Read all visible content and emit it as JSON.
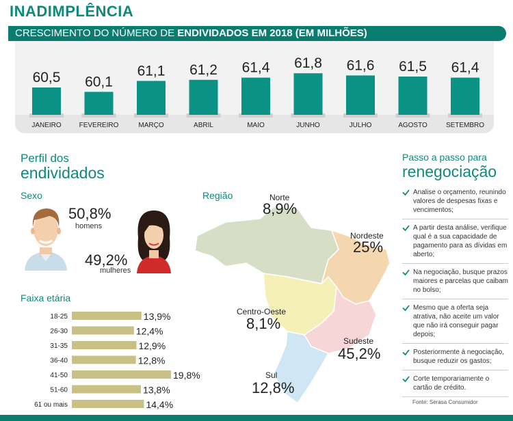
{
  "title": "INADIMPLÊNCIA",
  "subtitle_prefix": "CRESCIMENTO DO NÚMERO DE ",
  "subtitle_bold": "ENDIVIDADOS EM 2018 (EM MILHÕES)",
  "colors": {
    "teal": "#0e8a7a",
    "bar_teal": "#0a9384",
    "age_bar": "#c9c184",
    "norte": "#d6dfc6",
    "nordeste": "#f4d7af",
    "centro_oeste": "#f5f0b8",
    "sudeste": "#f6d6d6",
    "sul": "#cfe6f4"
  },
  "perfil": {
    "line1": "Perfil dos",
    "line2": "endividados"
  },
  "sexo": {
    "label": "Sexo",
    "homens_value": "50,8%",
    "homens_label": "homens",
    "mulheres_value": "49,2%",
    "mulheres_label": "mulheres"
  },
  "faixa_label": "Faixa etária",
  "regiao_label": "Região",
  "regions": [
    {
      "name": "Norte",
      "value": "8,9%"
    },
    {
      "name": "Nordeste",
      "value": "25%"
    },
    {
      "name": "Centro-Oeste",
      "value": "8,1%"
    },
    {
      "name": "Sudeste",
      "value": "45,2%"
    },
    {
      "name": "Sul",
      "value": "12,8%"
    }
  ],
  "passo": {
    "line1": "Passo a passo para",
    "line2": "renegociação"
  },
  "steps": [
    "Analise o orçamento, reunindo valores de despesas fixas e vencimentos;",
    "A partir desta análise, verifique qual é a sua capacidade de pagamento para as dívidas em aberto;",
    "Na negociação, busque prazos maiores e parcelas que caibam no bolso;",
    "Mesmo que a oferta seja atrativa, não aceite um valor que não irá conseguir pagar depois;",
    "Posteriormente à negociação, busque reduzir os gastos;",
    "Corte temporariamente o cartão de crédito."
  ],
  "source": "Fonte: Serasa Consumidor",
  "chart_data": [
    {
      "type": "bar",
      "categories": [
        "JANEIRO",
        "FEVEREIRO",
        "MARÇO",
        "ABRIL",
        "MAIO",
        "JUNHO",
        "JULHO",
        "AGOSTO",
        "SETEMBRO"
      ],
      "values": [
        60.5,
        60.1,
        61.1,
        61.2,
        61.4,
        61.8,
        61.6,
        61.5,
        61.4
      ],
      "labels": [
        "60,5",
        "60,1",
        "61,1",
        "61,2",
        "61,4",
        "61,8",
        "61,6",
        "61,5",
        "61,4"
      ],
      "title": "CRESCIMENTO DO NÚMERO DE ENDIVIDADOS EM 2018 (EM MILHÕES)"
    },
    {
      "type": "bar",
      "orientation": "horizontal",
      "categories": [
        "18-25",
        "26-30",
        "31-35",
        "36-40",
        "41-50",
        "51-60",
        "61 ou mais"
      ],
      "values": [
        13.9,
        12.4,
        12.9,
        12.8,
        19.8,
        13.8,
        14.4
      ],
      "labels": [
        "13,9%",
        "12,4%",
        "12,9%",
        "12,8%",
        "19,8%",
        "13,8%",
        "14,4%"
      ],
      "title": "Faixa etária"
    }
  ]
}
